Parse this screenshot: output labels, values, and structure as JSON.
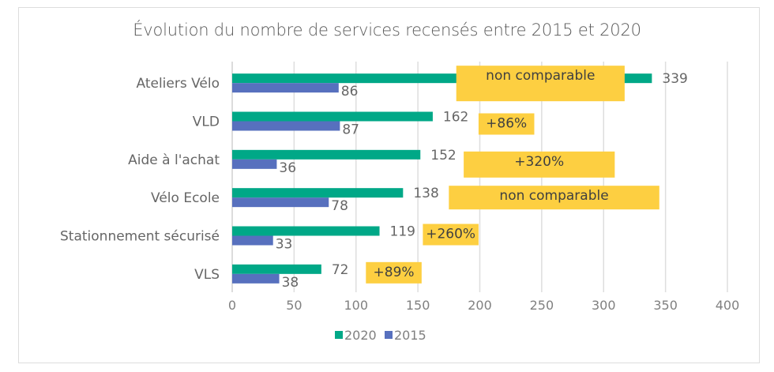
{
  "chart_data": {
    "type": "bar",
    "orientation": "horizontal",
    "title": "Évolution du nombre de services recensés entre 2015 et 2020",
    "xlabel": "",
    "ylabel": "",
    "xlim": [
      0,
      400
    ],
    "xticks": [
      0,
      50,
      100,
      150,
      200,
      250,
      300,
      350,
      400
    ],
    "grid": true,
    "legend_position": "bottom",
    "categories": [
      "Ateliers Vélo",
      "VLD",
      "Aide à l'achat",
      "Vélo Ecole",
      "Stationnement sécurisé",
      "VLS"
    ],
    "series": [
      {
        "name": "2020",
        "color": "#00a887",
        "values": [
          339,
          162,
          152,
          138,
          119,
          72
        ]
      },
      {
        "name": "2015",
        "color": "#5770be",
        "values": [
          86,
          87,
          36,
          78,
          33,
          38
        ]
      }
    ],
    "annotations": [
      {
        "category": "Ateliers Vélo",
        "text": "non comparable"
      },
      {
        "category": "VLD",
        "text": "+86%"
      },
      {
        "category": "Aide à l'achat",
        "text": "+320%"
      },
      {
        "category": "Vélo Ecole",
        "text": "non comparable"
      },
      {
        "category": "Stationnement sécurisé",
        "text": "+260%"
      },
      {
        "category": "VLS",
        "text": "+89%"
      }
    ],
    "annotation_color": "#fdcf41"
  }
}
